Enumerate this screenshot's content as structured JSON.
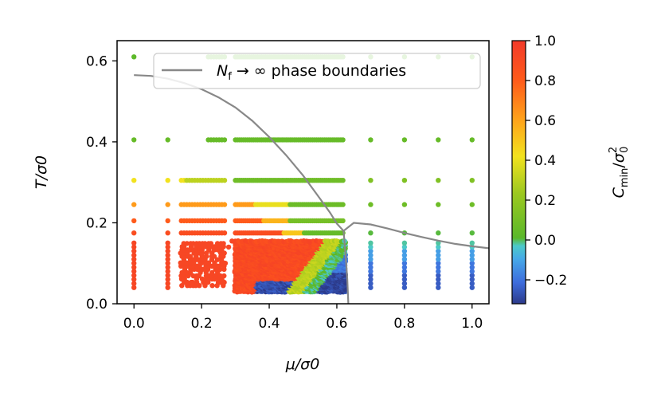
{
  "chart_data": {
    "type": "scatter",
    "title": "",
    "xlabel": "μ/σ0",
    "ylabel": "T/σ0",
    "xlim": [
      -0.05,
      1.05
    ],
    "ylim": [
      0.0,
      0.65
    ],
    "xticks": [
      "0.0",
      "0.2",
      "0.4",
      "0.6",
      "0.8",
      "1.0"
    ],
    "xtick_values": [
      0.0,
      0.2,
      0.4,
      0.6,
      0.8,
      1.0
    ],
    "yticks": [
      "0.0",
      "0.2",
      "0.4",
      "0.6"
    ],
    "ytick_values": [
      0.0,
      0.2,
      0.4,
      0.6
    ],
    "grid": false,
    "legend": {
      "placement": "top-right",
      "label_main": "N",
      "label_sub": "f",
      "label_rest": " → ∞ phase boundaries"
    },
    "series": [
      {
        "name": "Cmin/σ0² scatter",
        "color_by": "Cmin/σ0²",
        "scan_T_values": [
          0.05,
          0.07,
          0.09,
          0.11,
          0.13,
          0.15,
          0.175,
          0.205,
          0.245,
          0.305,
          0.405,
          0.61
        ],
        "scan_mu_sparse": [
          0.0,
          0.1,
          0.7,
          0.8,
          0.9,
          1.0
        ],
        "dense_mu_range": [
          0.3,
          0.62
        ],
        "cluster_mu_range": [
          0.14,
          0.27
        ]
      },
      {
        "name": "N_f → ∞ phase boundaries",
        "type": "line",
        "color": "#888888",
        "curve_upper": [
          [
            0.0,
            0.565
          ],
          [
            0.05,
            0.563
          ],
          [
            0.1,
            0.556
          ],
          [
            0.15,
            0.545
          ],
          [
            0.2,
            0.53
          ],
          [
            0.25,
            0.51
          ],
          [
            0.3,
            0.485
          ],
          [
            0.35,
            0.452
          ],
          [
            0.4,
            0.412
          ],
          [
            0.45,
            0.367
          ],
          [
            0.5,
            0.317
          ],
          [
            0.55,
            0.26
          ],
          [
            0.58,
            0.225
          ],
          [
            0.6,
            0.198
          ],
          [
            0.62,
            0.18
          ]
        ],
        "curve_lower": [
          [
            0.62,
            0.18
          ],
          [
            0.65,
            0.2
          ],
          [
            0.7,
            0.196
          ],
          [
            0.75,
            0.186
          ],
          [
            0.8,
            0.175
          ],
          [
            0.85,
            0.165
          ],
          [
            0.9,
            0.156
          ],
          [
            0.95,
            0.148
          ],
          [
            1.0,
            0.142
          ],
          [
            1.05,
            0.137
          ]
        ],
        "curve_vertical": [
          [
            0.62,
            0.18
          ],
          [
            0.626,
            0.12
          ],
          [
            0.631,
            0.06
          ],
          [
            0.634,
            0.0
          ]
        ]
      }
    ],
    "colorbar": {
      "label_main": "C",
      "label_sub": "min",
      "label_denom": "σ",
      "label_denom_sup": "2",
      "label_denom_sub": "0",
      "ticks": [
        "1.0",
        "0.8",
        "0.6",
        "0.4",
        "0.2",
        "0.0",
        "−0.2"
      ],
      "tick_values": [
        1.0,
        0.8,
        0.6,
        0.4,
        0.2,
        0.0,
        -0.2
      ],
      "range": [
        -0.32,
        1.0
      ],
      "colors": [
        "#2c3a8a",
        "#3d6cdc",
        "#46a8e8",
        "#4cc9c9",
        "#5ab82a",
        "#9cc820",
        "#f2e21e",
        "#ffa21a",
        "#ff5a1a",
        "#f23a2a"
      ]
    }
  }
}
